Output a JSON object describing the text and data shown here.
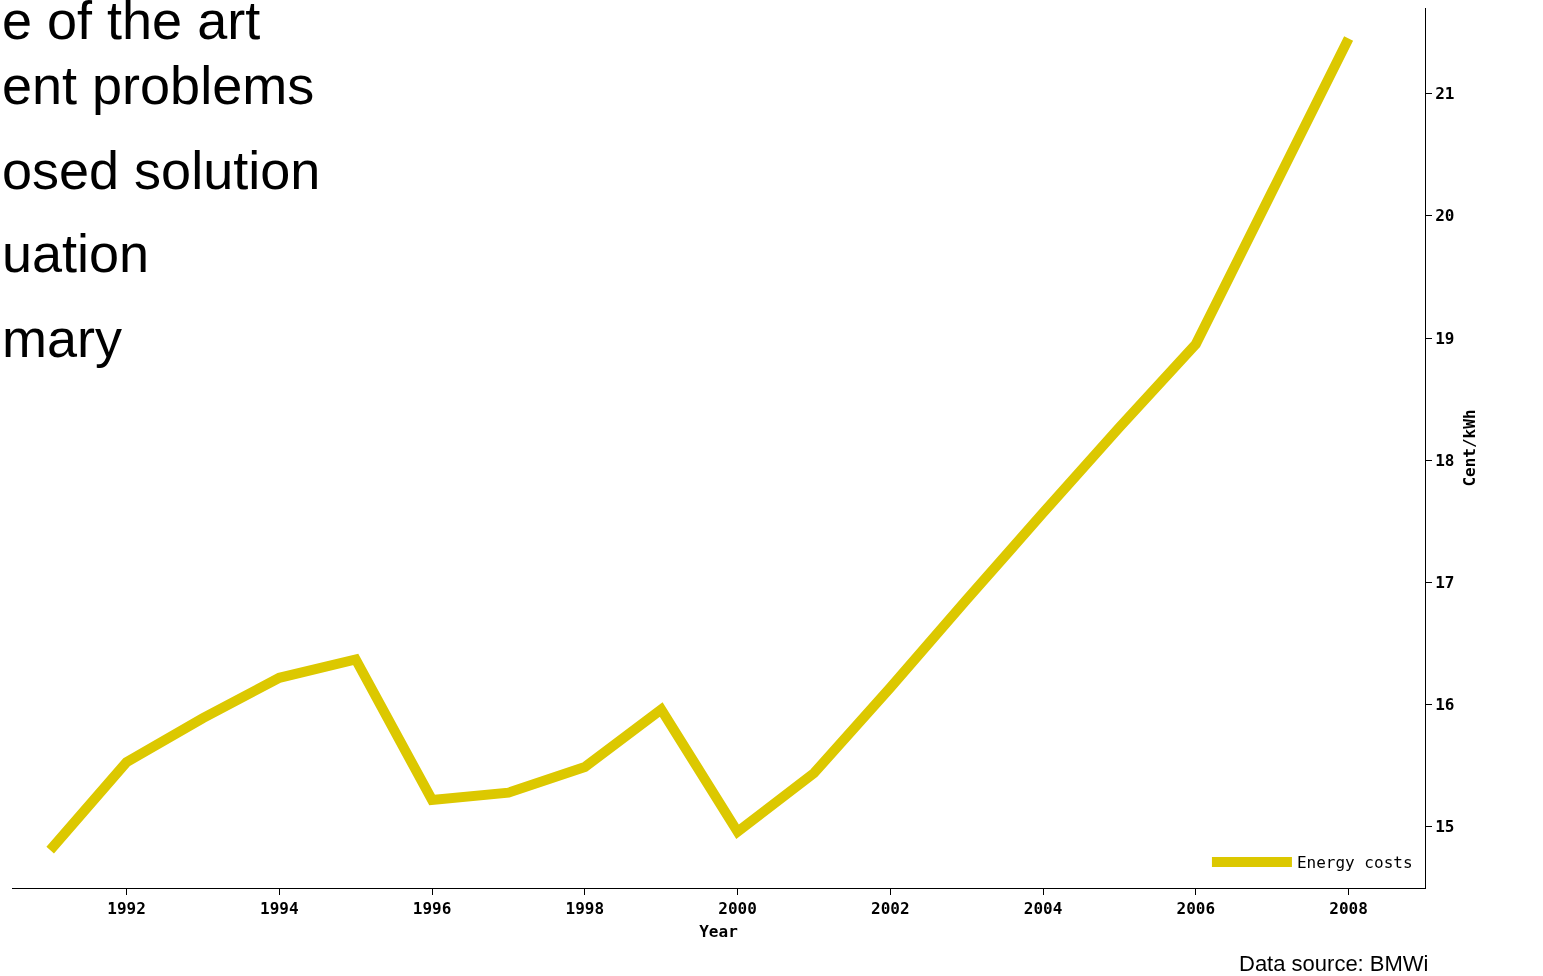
{
  "chart_data": {
    "type": "line",
    "xlabel": "Year",
    "ylabel": "Cent/kWh",
    "x": [
      1991,
      1992,
      1993,
      1994,
      1995,
      1996,
      1997,
      1998,
      1999,
      2000,
      2001,
      2002,
      2003,
      2004,
      2005,
      2006,
      2007,
      2008
    ],
    "series": [
      {
        "name": "Energy costs",
        "color": "#dcc800",
        "values": [
          14.81,
          15.53,
          15.89,
          16.22,
          16.37,
          15.22,
          15.28,
          15.49,
          15.96,
          14.96,
          15.44,
          16.14,
          16.86,
          17.57,
          18.27,
          18.95,
          20.2,
          21.45
        ]
      }
    ],
    "xlim": [
      1990.5,
      2009.0
    ],
    "xticks": [
      1992,
      1994,
      1996,
      1998,
      2000,
      2002,
      2004,
      2006,
      2008
    ],
    "ylim": [
      14.5,
      21.7
    ],
    "yticks": [
      15,
      16,
      17,
      18,
      19,
      20,
      21
    ],
    "legend": "bottom right",
    "marker": "none",
    "line_style": "solid",
    "annotations": [
      "e of the art",
      "ent problems",
      "osed solution",
      "uation",
      "mary",
      "Data source: BMWi"
    ]
  }
}
